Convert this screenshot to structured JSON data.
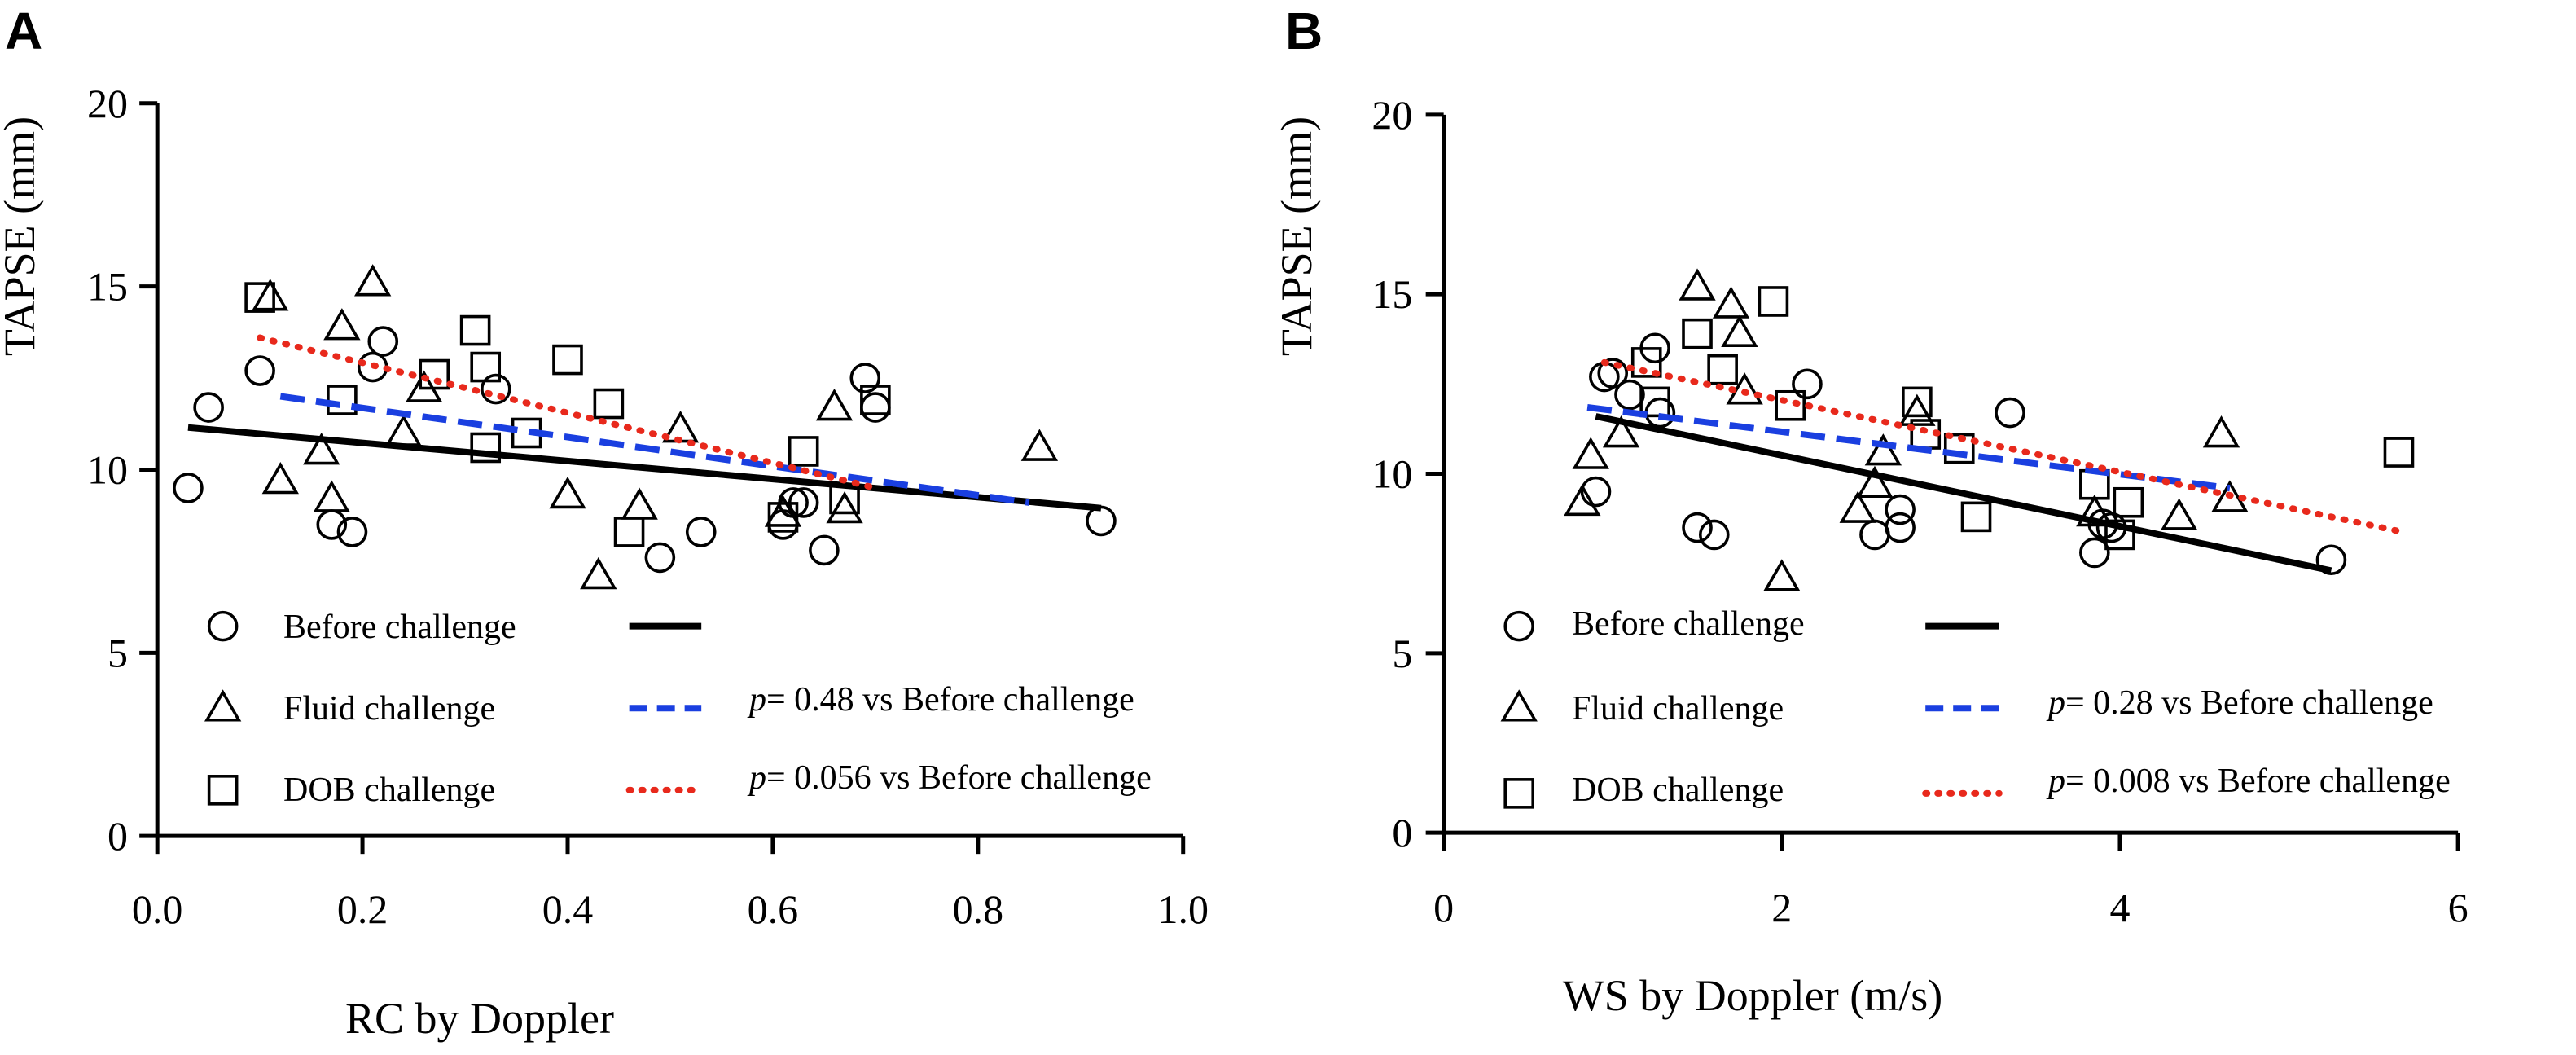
{
  "chart_data": [
    {
      "type": "scatter",
      "panel_label": "A",
      "xlabel": "RC by Doppler",
      "ylabel": "TAPSE (mm)",
      "xlim": [
        0.0,
        1.0
      ],
      "ylim": [
        0,
        20
      ],
      "xticks": [
        0.0,
        0.2,
        0.4,
        0.6,
        0.8,
        1.0
      ],
      "xtick_labels": [
        "0.0",
        "0.2",
        "0.4",
        "0.6",
        "0.8",
        "1.0"
      ],
      "yticks": [
        0,
        5,
        10,
        15,
        20
      ],
      "ytick_labels": [
        "0",
        "5",
        "10",
        "15",
        "20"
      ],
      "grid": false,
      "legend_position": "bottom-left",
      "series": [
        {
          "name": "Before challenge",
          "marker": "circle",
          "line_style": "solid",
          "line_color": "#000000",
          "line_annotation": "",
          "points": [
            [
              0.03,
              9.5
            ],
            [
              0.05,
              11.7
            ],
            [
              0.1,
              12.7
            ],
            [
              0.17,
              8.5
            ],
            [
              0.19,
              8.3
            ],
            [
              0.21,
              12.8
            ],
            [
              0.22,
              13.5
            ],
            [
              0.33,
              12.2
            ],
            [
              0.49,
              7.6
            ],
            [
              0.53,
              8.3
            ],
            [
              0.61,
              8.5
            ],
            [
              0.62,
              9.1
            ],
            [
              0.63,
              9.1
            ],
            [
              0.65,
              7.8
            ],
            [
              0.69,
              12.5
            ],
            [
              0.7,
              11.7
            ],
            [
              0.92,
              8.6
            ]
          ],
          "fit": [
            [
              0.03,
              11.15
            ],
            [
              0.92,
              8.95
            ]
          ]
        },
        {
          "name": "Fluid challenge",
          "marker": "triangle",
          "line_style": "dashed",
          "line_color": "#1a3fe0",
          "line_annotation": "p= 0.48 vs Before challenge",
          "points": [
            [
              0.11,
              14.7
            ],
            [
              0.12,
              9.7
            ],
            [
              0.16,
              10.5
            ],
            [
              0.17,
              9.2
            ],
            [
              0.18,
              13.9
            ],
            [
              0.21,
              15.1
            ],
            [
              0.24,
              11.0
            ],
            [
              0.26,
              12.2
            ],
            [
              0.4,
              9.3
            ],
            [
              0.43,
              7.1
            ],
            [
              0.47,
              9.0
            ],
            [
              0.51,
              11.1
            ],
            [
              0.61,
              8.8
            ],
            [
              0.66,
              11.7
            ],
            [
              0.67,
              8.9
            ],
            [
              0.86,
              10.6
            ]
          ],
          "fit": [
            [
              0.12,
              12.0
            ],
            [
              0.85,
              9.1
            ]
          ]
        },
        {
          "name": "DOB challenge",
          "marker": "square",
          "line_style": "dotted",
          "line_color": "#e8291c",
          "line_annotation": "p= 0.056 vs Before challenge",
          "points": [
            [
              0.1,
              14.7
            ],
            [
              0.18,
              11.9
            ],
            [
              0.27,
              12.6
            ],
            [
              0.31,
              13.8
            ],
            [
              0.32,
              10.6
            ],
            [
              0.32,
              12.8
            ],
            [
              0.36,
              11.0
            ],
            [
              0.4,
              13.0
            ],
            [
              0.44,
              11.8
            ],
            [
              0.46,
              8.3
            ],
            [
              0.61,
              8.7
            ],
            [
              0.63,
              10.5
            ],
            [
              0.67,
              9.2
            ],
            [
              0.7,
              11.9
            ]
          ],
          "fit": [
            [
              0.1,
              13.6
            ],
            [
              0.7,
              9.5
            ]
          ]
        }
      ]
    },
    {
      "type": "scatter",
      "panel_label": "B",
      "xlabel": "WS by Doppler (m/s)",
      "ylabel": "TAPSE (mm)",
      "xlim": [
        0,
        6
      ],
      "ylim": [
        0,
        20
      ],
      "xticks": [
        0,
        2,
        4,
        6
      ],
      "xtick_labels": [
        "0",
        "2",
        "4",
        "6"
      ],
      "yticks": [
        0,
        5,
        10,
        15,
        20
      ],
      "ytick_labels": [
        "0",
        "5",
        "10",
        "15",
        "20"
      ],
      "grid": false,
      "legend_position": "bottom-left",
      "series": [
        {
          "name": "Before challenge",
          "marker": "circle",
          "line_style": "solid",
          "line_color": "#000000",
          "line_annotation": "",
          "points": [
            [
              0.9,
              9.5
            ],
            [
              0.95,
              12.7
            ],
            [
              1.0,
              12.8
            ],
            [
              1.1,
              12.2
            ],
            [
              1.25,
              13.5
            ],
            [
              1.28,
              11.7
            ],
            [
              1.5,
              8.5
            ],
            [
              1.6,
              8.3
            ],
            [
              2.15,
              12.5
            ],
            [
              2.55,
              8.3
            ],
            [
              2.7,
              8.5
            ],
            [
              2.7,
              9.0
            ],
            [
              3.35,
              11.7
            ],
            [
              3.85,
              7.8
            ],
            [
              3.9,
              8.6
            ],
            [
              3.95,
              8.5
            ],
            [
              5.25,
              7.6
            ]
          ],
          "fit": [
            [
              0.9,
              11.6
            ],
            [
              5.25,
              7.3
            ]
          ]
        },
        {
          "name": "Fluid challenge",
          "marker": "triangle",
          "line_style": "dashed",
          "line_color": "#1a3fe0",
          "line_annotation": "p= 0.28 vs Before challenge",
          "points": [
            [
              0.82,
              9.2
            ],
            [
              0.87,
              10.5
            ],
            [
              1.05,
              11.1
            ],
            [
              1.5,
              15.2
            ],
            [
              1.7,
              14.7
            ],
            [
              1.75,
              13.9
            ],
            [
              1.78,
              12.3
            ],
            [
              2.0,
              7.1
            ],
            [
              2.45,
              9.0
            ],
            [
              2.55,
              9.7
            ],
            [
              2.6,
              10.6
            ],
            [
              2.8,
              11.7
            ],
            [
              3.85,
              8.9
            ],
            [
              4.35,
              8.8
            ],
            [
              4.6,
              11.1
            ],
            [
              4.65,
              9.3
            ]
          ],
          "fit": [
            [
              0.85,
              11.85
            ],
            [
              4.65,
              9.6
            ]
          ]
        },
        {
          "name": "DOB challenge",
          "marker": "square",
          "line_style": "dotted",
          "line_color": "#e8291c",
          "line_annotation": "p= 0.008 vs Before challenge",
          "points": [
            [
              1.2,
              13.1
            ],
            [
              1.25,
              12.0
            ],
            [
              1.5,
              13.9
            ],
            [
              1.65,
              12.9
            ],
            [
              1.95,
              14.8
            ],
            [
              2.05,
              11.9
            ],
            [
              2.8,
              12.0
            ],
            [
              2.85,
              11.1
            ],
            [
              3.05,
              10.7
            ],
            [
              3.15,
              8.8
            ],
            [
              3.85,
              9.7
            ],
            [
              4.0,
              8.3
            ],
            [
              4.05,
              9.2
            ],
            [
              5.65,
              10.6
            ]
          ],
          "fit": [
            [
              0.95,
              13.1
            ],
            [
              5.65,
              8.4
            ]
          ]
        }
      ]
    }
  ]
}
